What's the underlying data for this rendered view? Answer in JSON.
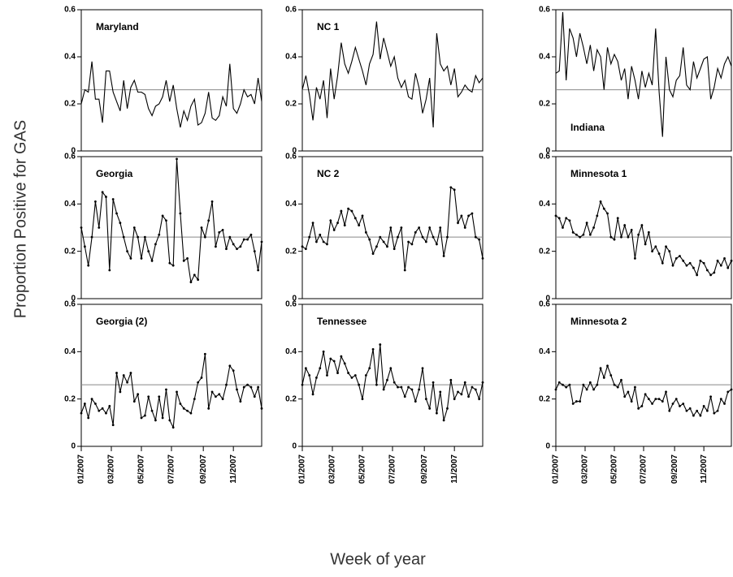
{
  "figure": {
    "y_label": "Proportion Positive for GAS",
    "x_label": "Week of year"
  },
  "chart_data": [
    {
      "type": "line",
      "title": "Maryland",
      "title_corner": "top-left",
      "markers": false,
      "color": "#000000",
      "hline": 0.26,
      "hline_color": "#888888",
      "xlim": [
        1,
        52
      ],
      "ylim": [
        0,
        0.6
      ],
      "yticks": [
        0,
        0.2,
        0.4,
        0.6
      ],
      "x": [
        1,
        2,
        3,
        4,
        5,
        6,
        7,
        8,
        9,
        10,
        11,
        12,
        13,
        14,
        15,
        16,
        17,
        18,
        19,
        20,
        21,
        22,
        23,
        24,
        25,
        26,
        27,
        28,
        29,
        30,
        31,
        32,
        33,
        34,
        35,
        36,
        37,
        38,
        39,
        40,
        41,
        42,
        43,
        44,
        45,
        46,
        47,
        48,
        49,
        50,
        51,
        52
      ],
      "values": [
        0.2,
        0.26,
        0.25,
        0.38,
        0.22,
        0.22,
        0.12,
        0.34,
        0.34,
        0.25,
        0.21,
        0.17,
        0.3,
        0.18,
        0.27,
        0.3,
        0.25,
        0.25,
        0.24,
        0.18,
        0.15,
        0.19,
        0.2,
        0.23,
        0.3,
        0.21,
        0.28,
        0.18,
        0.1,
        0.17,
        0.13,
        0.19,
        0.22,
        0.11,
        0.12,
        0.16,
        0.25,
        0.14,
        0.13,
        0.15,
        0.23,
        0.19,
        0.37,
        0.18,
        0.16,
        0.2,
        0.26,
        0.23,
        0.24,
        0.2,
        0.31,
        0.21
      ]
    },
    {
      "type": "line",
      "title": "NC 1",
      "title_corner": "top-left",
      "markers": false,
      "color": "#000000",
      "hline": 0.26,
      "hline_color": "#888888",
      "xlim": [
        1,
        52
      ],
      "ylim": [
        0,
        0.6
      ],
      "yticks": [
        0,
        0.2,
        0.4,
        0.6
      ],
      "x": [
        1,
        2,
        3,
        4,
        5,
        6,
        7,
        8,
        9,
        10,
        11,
        12,
        13,
        14,
        15,
        16,
        17,
        18,
        19,
        20,
        21,
        22,
        23,
        24,
        25,
        26,
        27,
        28,
        29,
        30,
        31,
        32,
        33,
        34,
        35,
        36,
        37,
        38,
        39,
        40,
        41,
        42,
        43,
        44,
        45,
        46,
        47,
        48,
        49,
        50,
        51,
        52
      ],
      "values": [
        0.26,
        0.32,
        0.24,
        0.13,
        0.27,
        0.22,
        0.3,
        0.14,
        0.35,
        0.22,
        0.32,
        0.46,
        0.37,
        0.33,
        0.38,
        0.44,
        0.39,
        0.34,
        0.28,
        0.37,
        0.41,
        0.55,
        0.39,
        0.48,
        0.42,
        0.36,
        0.4,
        0.31,
        0.27,
        0.3,
        0.23,
        0.22,
        0.33,
        0.27,
        0.16,
        0.22,
        0.31,
        0.1,
        0.5,
        0.37,
        0.34,
        0.36,
        0.28,
        0.35,
        0.23,
        0.25,
        0.28,
        0.26,
        0.25,
        0.32,
        0.29,
        0.31
      ]
    },
    {
      "type": "line",
      "title": "Indiana",
      "title_corner": "bottom-left",
      "markers": false,
      "color": "#000000",
      "hline": 0.26,
      "hline_color": "#888888",
      "xlim": [
        1,
        52
      ],
      "ylim": [
        0,
        0.6
      ],
      "yticks": [
        0,
        0.2,
        0.4,
        0.6
      ],
      "x": [
        1,
        2,
        3,
        4,
        5,
        6,
        7,
        8,
        9,
        10,
        11,
        12,
        13,
        14,
        15,
        16,
        17,
        18,
        19,
        20,
        21,
        22,
        23,
        24,
        25,
        26,
        27,
        28,
        29,
        30,
        31,
        32,
        33,
        34,
        35,
        36,
        37,
        38,
        39,
        40,
        41,
        42,
        43,
        44,
        45,
        46,
        47,
        48,
        49,
        50,
        51,
        52
      ],
      "values": [
        0.33,
        0.34,
        0.59,
        0.3,
        0.52,
        0.48,
        0.4,
        0.5,
        0.44,
        0.37,
        0.45,
        0.34,
        0.43,
        0.4,
        0.26,
        0.44,
        0.37,
        0.41,
        0.38,
        0.3,
        0.35,
        0.22,
        0.36,
        0.3,
        0.22,
        0.34,
        0.27,
        0.33,
        0.28,
        0.52,
        0.25,
        0.06,
        0.4,
        0.26,
        0.23,
        0.3,
        0.32,
        0.44,
        0.28,
        0.26,
        0.38,
        0.31,
        0.35,
        0.39,
        0.4,
        0.22,
        0.27,
        0.35,
        0.31,
        0.37,
        0.4,
        0.36
      ]
    },
    {
      "type": "line",
      "title": "Georgia",
      "title_corner": "top-left",
      "markers": true,
      "color": "#000000",
      "hline": 0.26,
      "hline_color": "#888888",
      "xlim": [
        1,
        52
      ],
      "ylim": [
        0,
        0.6
      ],
      "yticks": [
        0,
        0.2,
        0.4,
        0.6
      ],
      "x": [
        1,
        2,
        3,
        4,
        5,
        6,
        7,
        8,
        9,
        10,
        11,
        12,
        13,
        14,
        15,
        16,
        17,
        18,
        19,
        20,
        21,
        22,
        23,
        24,
        25,
        26,
        27,
        28,
        29,
        30,
        31,
        32,
        33,
        34,
        35,
        36,
        37,
        38,
        39,
        40,
        41,
        42,
        43,
        44,
        45,
        46,
        47,
        48,
        49,
        50,
        51,
        52
      ],
      "values": [
        0.3,
        0.22,
        0.14,
        0.26,
        0.41,
        0.3,
        0.45,
        0.43,
        0.12,
        0.42,
        0.36,
        0.32,
        0.26,
        0.2,
        0.17,
        0.3,
        0.26,
        0.17,
        0.26,
        0.2,
        0.16,
        0.23,
        0.27,
        0.35,
        0.33,
        0.15,
        0.14,
        0.59,
        0.36,
        0.16,
        0.17,
        0.07,
        0.1,
        0.08,
        0.3,
        0.26,
        0.33,
        0.41,
        0.22,
        0.28,
        0.29,
        0.21,
        0.26,
        0.23,
        0.21,
        0.22,
        0.25,
        0.25,
        0.27,
        0.2,
        0.12,
        0.24
      ]
    },
    {
      "type": "line",
      "title": "NC 2",
      "title_corner": "top-left",
      "markers": true,
      "color": "#000000",
      "hline": 0.26,
      "hline_color": "#888888",
      "xlim": [
        1,
        52
      ],
      "ylim": [
        0,
        0.6
      ],
      "yticks": [
        0,
        0.2,
        0.4,
        0.6
      ],
      "x": [
        1,
        2,
        3,
        4,
        5,
        6,
        7,
        8,
        9,
        10,
        11,
        12,
        13,
        14,
        15,
        16,
        17,
        18,
        19,
        20,
        21,
        22,
        23,
        24,
        25,
        26,
        27,
        28,
        29,
        30,
        31,
        32,
        33,
        34,
        35,
        36,
        37,
        38,
        39,
        40,
        41,
        42,
        43,
        44,
        45,
        46,
        47,
        48,
        49,
        50,
        51,
        52
      ],
      "values": [
        0.22,
        0.21,
        0.26,
        0.32,
        0.24,
        0.27,
        0.24,
        0.23,
        0.33,
        0.29,
        0.32,
        0.37,
        0.31,
        0.38,
        0.37,
        0.34,
        0.31,
        0.35,
        0.28,
        0.25,
        0.19,
        0.22,
        0.26,
        0.24,
        0.22,
        0.3,
        0.21,
        0.26,
        0.3,
        0.12,
        0.24,
        0.23,
        0.28,
        0.3,
        0.26,
        0.24,
        0.3,
        0.26,
        0.23,
        0.3,
        0.18,
        0.26,
        0.47,
        0.46,
        0.32,
        0.35,
        0.3,
        0.35,
        0.36,
        0.26,
        0.25,
        0.17
      ]
    },
    {
      "type": "line",
      "title": "Minnesota 1",
      "title_corner": "top-left",
      "markers": true,
      "color": "#000000",
      "hline": 0.26,
      "hline_color": "#888888",
      "xlim": [
        1,
        52
      ],
      "ylim": [
        0,
        0.6
      ],
      "yticks": [
        0,
        0.2,
        0.4,
        0.6
      ],
      "x": [
        1,
        2,
        3,
        4,
        5,
        6,
        7,
        8,
        9,
        10,
        11,
        12,
        13,
        14,
        15,
        16,
        17,
        18,
        19,
        20,
        21,
        22,
        23,
        24,
        25,
        26,
        27,
        28,
        29,
        30,
        31,
        32,
        33,
        34,
        35,
        36,
        37,
        38,
        39,
        40,
        41,
        42,
        43,
        44,
        45,
        46,
        47,
        48,
        49,
        50,
        51,
        52
      ],
      "values": [
        0.35,
        0.34,
        0.3,
        0.34,
        0.33,
        0.28,
        0.27,
        0.26,
        0.27,
        0.32,
        0.27,
        0.3,
        0.35,
        0.41,
        0.38,
        0.36,
        0.26,
        0.25,
        0.34,
        0.26,
        0.31,
        0.26,
        0.29,
        0.17,
        0.27,
        0.31,
        0.23,
        0.28,
        0.2,
        0.22,
        0.19,
        0.15,
        0.22,
        0.2,
        0.14,
        0.17,
        0.18,
        0.16,
        0.14,
        0.15,
        0.13,
        0.1,
        0.16,
        0.15,
        0.12,
        0.1,
        0.11,
        0.16,
        0.14,
        0.17,
        0.13,
        0.16
      ]
    },
    {
      "type": "line",
      "title": "Georgia (2)",
      "title_corner": "top-left",
      "markers": true,
      "color": "#000000",
      "hline": 0.26,
      "hline_color": "#888888",
      "xlim": [
        1,
        52
      ],
      "ylim": [
        0,
        0.6
      ],
      "yticks": [
        0,
        0.2,
        0.4,
        0.6
      ],
      "xticks": [
        {
          "value": 1,
          "label": "01/2007"
        },
        {
          "value": 9.5,
          "label": "03/2007"
        },
        {
          "value": 18,
          "label": "05/2007"
        },
        {
          "value": 26.5,
          "label": "07/2007"
        },
        {
          "value": 35.5,
          "label": "09/2007"
        },
        {
          "value": 44,
          "label": "11/2007"
        }
      ],
      "x": [
        1,
        2,
        3,
        4,
        5,
        6,
        7,
        8,
        9,
        10,
        11,
        12,
        13,
        14,
        15,
        16,
        17,
        18,
        19,
        20,
        21,
        22,
        23,
        24,
        25,
        26,
        27,
        28,
        29,
        30,
        31,
        32,
        33,
        34,
        35,
        36,
        37,
        38,
        39,
        40,
        41,
        42,
        43,
        44,
        45,
        46,
        47,
        48,
        49,
        50,
        51,
        52
      ],
      "values": [
        0.14,
        0.18,
        0.12,
        0.2,
        0.18,
        0.15,
        0.16,
        0.14,
        0.17,
        0.09,
        0.31,
        0.23,
        0.3,
        0.27,
        0.31,
        0.19,
        0.22,
        0.12,
        0.13,
        0.21,
        0.15,
        0.11,
        0.21,
        0.12,
        0.24,
        0.11,
        0.08,
        0.23,
        0.18,
        0.16,
        0.15,
        0.14,
        0.2,
        0.27,
        0.29,
        0.39,
        0.16,
        0.23,
        0.21,
        0.22,
        0.2,
        0.26,
        0.34,
        0.32,
        0.24,
        0.19,
        0.25,
        0.26,
        0.25,
        0.21,
        0.25,
        0.16
      ]
    },
    {
      "type": "line",
      "title": "Tennessee",
      "title_corner": "top-left",
      "markers": true,
      "color": "#000000",
      "hline": 0.26,
      "hline_color": "#888888",
      "xlim": [
        1,
        52
      ],
      "ylim": [
        0,
        0.6
      ],
      "yticks": [
        0,
        0.2,
        0.4,
        0.6
      ],
      "xticks": [
        {
          "value": 1,
          "label": "01/2007"
        },
        {
          "value": 9.5,
          "label": "03/2007"
        },
        {
          "value": 18,
          "label": "05/2007"
        },
        {
          "value": 26.5,
          "label": "07/2007"
        },
        {
          "value": 35.5,
          "label": "09/2007"
        },
        {
          "value": 44,
          "label": "11/2007"
        }
      ],
      "x": [
        1,
        2,
        3,
        4,
        5,
        6,
        7,
        8,
        9,
        10,
        11,
        12,
        13,
        14,
        15,
        16,
        17,
        18,
        19,
        20,
        21,
        22,
        23,
        24,
        25,
        26,
        27,
        28,
        29,
        30,
        31,
        32,
        33,
        34,
        35,
        36,
        37,
        38,
        39,
        40,
        41,
        42,
        43,
        44,
        45,
        46,
        47,
        48,
        49,
        50,
        51,
        52
      ],
      "values": [
        0.26,
        0.33,
        0.3,
        0.22,
        0.29,
        0.33,
        0.4,
        0.3,
        0.37,
        0.36,
        0.31,
        0.38,
        0.35,
        0.31,
        0.29,
        0.3,
        0.26,
        0.2,
        0.3,
        0.33,
        0.41,
        0.26,
        0.43,
        0.24,
        0.28,
        0.33,
        0.27,
        0.25,
        0.25,
        0.21,
        0.25,
        0.24,
        0.19,
        0.24,
        0.33,
        0.2,
        0.16,
        0.27,
        0.14,
        0.23,
        0.11,
        0.16,
        0.28,
        0.2,
        0.23,
        0.22,
        0.27,
        0.21,
        0.25,
        0.24,
        0.2,
        0.27
      ]
    },
    {
      "type": "line",
      "title": "Minnesota 2",
      "title_corner": "top-left",
      "markers": true,
      "color": "#000000",
      "hline": 0.26,
      "hline_color": "#888888",
      "xlim": [
        1,
        52
      ],
      "ylim": [
        0,
        0.6
      ],
      "yticks": [
        0,
        0.2,
        0.4,
        0.6
      ],
      "xticks": [
        {
          "value": 1,
          "label": "01/2007"
        },
        {
          "value": 9.5,
          "label": "03/2007"
        },
        {
          "value": 18,
          "label": "05/2007"
        },
        {
          "value": 26.5,
          "label": "07/2007"
        },
        {
          "value": 35.5,
          "label": "09/2007"
        },
        {
          "value": 44,
          "label": "11/2007"
        }
      ],
      "x": [
        1,
        2,
        3,
        4,
        5,
        6,
        7,
        8,
        9,
        10,
        11,
        12,
        13,
        14,
        15,
        16,
        17,
        18,
        19,
        20,
        21,
        22,
        23,
        24,
        25,
        26,
        27,
        28,
        29,
        30,
        31,
        32,
        33,
        34,
        35,
        36,
        37,
        38,
        39,
        40,
        41,
        42,
        43,
        44,
        45,
        46,
        47,
        48,
        49,
        50,
        51,
        52
      ],
      "values": [
        0.24,
        0.27,
        0.26,
        0.25,
        0.26,
        0.18,
        0.19,
        0.19,
        0.26,
        0.24,
        0.27,
        0.24,
        0.26,
        0.33,
        0.29,
        0.34,
        0.3,
        0.26,
        0.25,
        0.28,
        0.21,
        0.23,
        0.19,
        0.25,
        0.16,
        0.17,
        0.22,
        0.2,
        0.18,
        0.2,
        0.2,
        0.19,
        0.23,
        0.15,
        0.18,
        0.2,
        0.17,
        0.18,
        0.15,
        0.16,
        0.13,
        0.15,
        0.13,
        0.17,
        0.15,
        0.21,
        0.14,
        0.15,
        0.2,
        0.18,
        0.23,
        0.24
      ]
    }
  ]
}
